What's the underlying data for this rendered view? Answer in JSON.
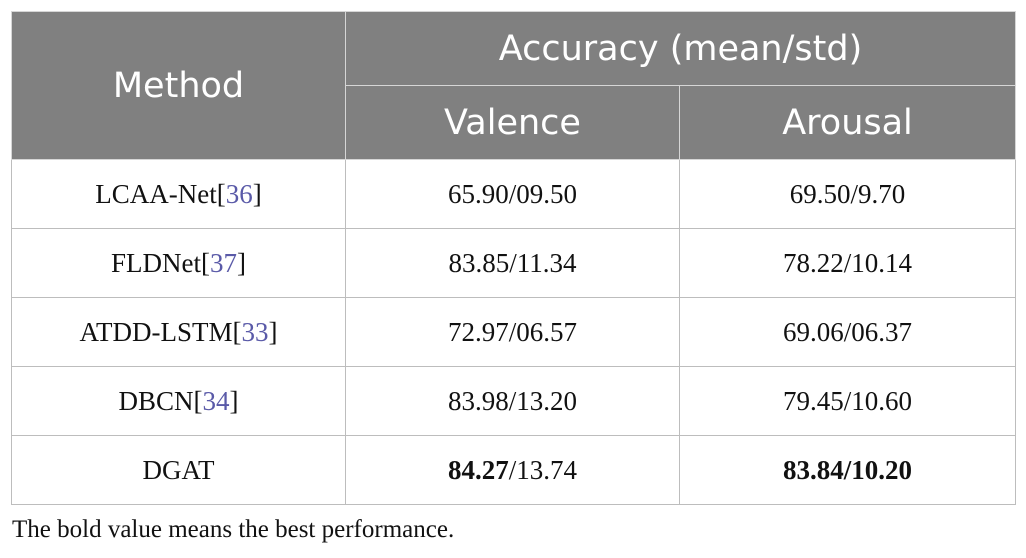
{
  "table": {
    "header": {
      "method": "Method",
      "group": "Accuracy (mean/std)",
      "valence": "Valence",
      "arousal": "Arousal"
    },
    "rows": [
      {
        "method": "LCAA-Net",
        "ref": "36",
        "valence": "65.90/09.50",
        "valence_bold": "",
        "valence_rest": "65.90/09.50",
        "arousal": "69.50/9.70",
        "arousal_bold": "",
        "arousal_rest": "69.50/9.70"
      },
      {
        "method": "FLDNet",
        "ref": "37",
        "valence": "83.85/11.34",
        "valence_bold": "",
        "valence_rest": "83.85/11.34",
        "arousal": "78.22/10.14",
        "arousal_bold": "",
        "arousal_rest": "78.22/10.14"
      },
      {
        "method": "ATDD-LSTM",
        "ref": "33",
        "valence": "72.97/06.57",
        "valence_bold": "",
        "valence_rest": "72.97/06.57",
        "arousal": "69.06/06.37",
        "arousal_bold": "",
        "arousal_rest": "69.06/06.37"
      },
      {
        "method": "DBCN",
        "ref": "34",
        "valence": "83.98/13.20",
        "valence_bold": "",
        "valence_rest": "83.98/13.20",
        "arousal": "79.45/10.60",
        "arousal_bold": "",
        "arousal_rest": "79.45/10.60"
      },
      {
        "method": "DGAT",
        "ref": "",
        "valence": "84.27/13.74",
        "valence_bold": "84.27",
        "valence_rest": "/13.74",
        "arousal": "83.84/10.20",
        "arousal_bold": "83.84/10.20",
        "arousal_rest": ""
      }
    ]
  },
  "footnote": "The bold value means the best performance."
}
